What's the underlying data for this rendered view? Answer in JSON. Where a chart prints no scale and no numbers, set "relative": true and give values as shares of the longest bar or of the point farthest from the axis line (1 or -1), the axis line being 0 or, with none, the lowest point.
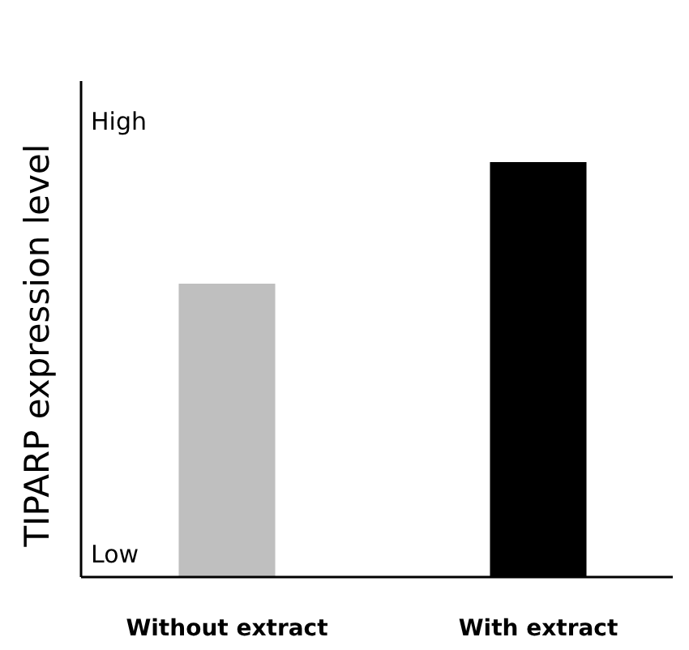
{
  "chart_data": {
    "type": "bar",
    "relative": true,
    "ylabel": "TIPARP expression level",
    "categories": [
      "Without extract",
      "With extract"
    ],
    "values": [
      0.707,
      1
    ],
    "colors": [
      "#bfbfbf",
      "#000000"
    ],
    "annotations": [
      "High",
      "Low"
    ]
  }
}
